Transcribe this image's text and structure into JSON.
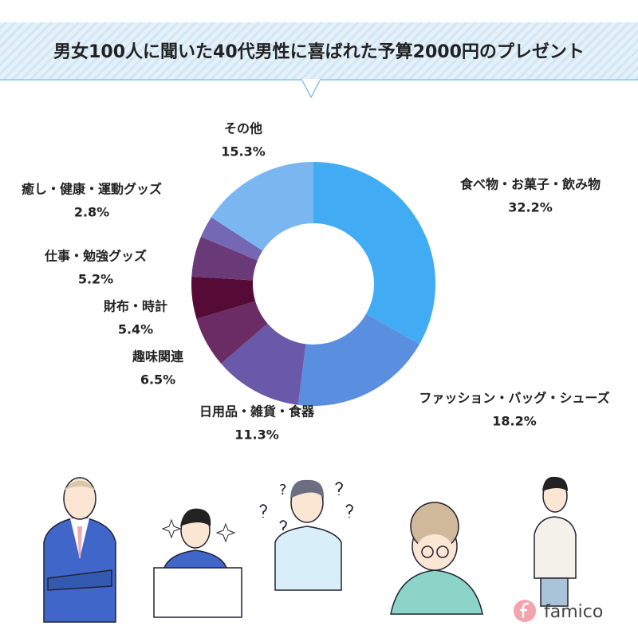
{
  "chart_data": {
    "type": "donut",
    "title": "男女100人に聞いた40代男性に喜ばれた予算2000円のプレゼント",
    "categories": [
      "食べ物・お菓子・飲み物",
      "ファッション・バッグ・シューズ",
      "日用品・雑貨・食器",
      "趣味関連",
      "財布・時計",
      "仕事・勉強グッズ",
      "癒し・健康・運動グッズ",
      "その他"
    ],
    "values": [
      32.2,
      18.2,
      11.3,
      6.5,
      5.4,
      5.2,
      2.8,
      15.3
    ],
    "value_labels": [
      "32.2%",
      "18.2%",
      "11.3%",
      "6.5%",
      "5.4%",
      "5.2%",
      "2.8%",
      "15.3%"
    ],
    "colors": [
      "#41acf4",
      "#5a8ede",
      "#6a58a8",
      "#6b2b64",
      "#560a36",
      "#6a3a78",
      "#7468b4",
      "#7ab7f0"
    ]
  },
  "logo": "famico"
}
